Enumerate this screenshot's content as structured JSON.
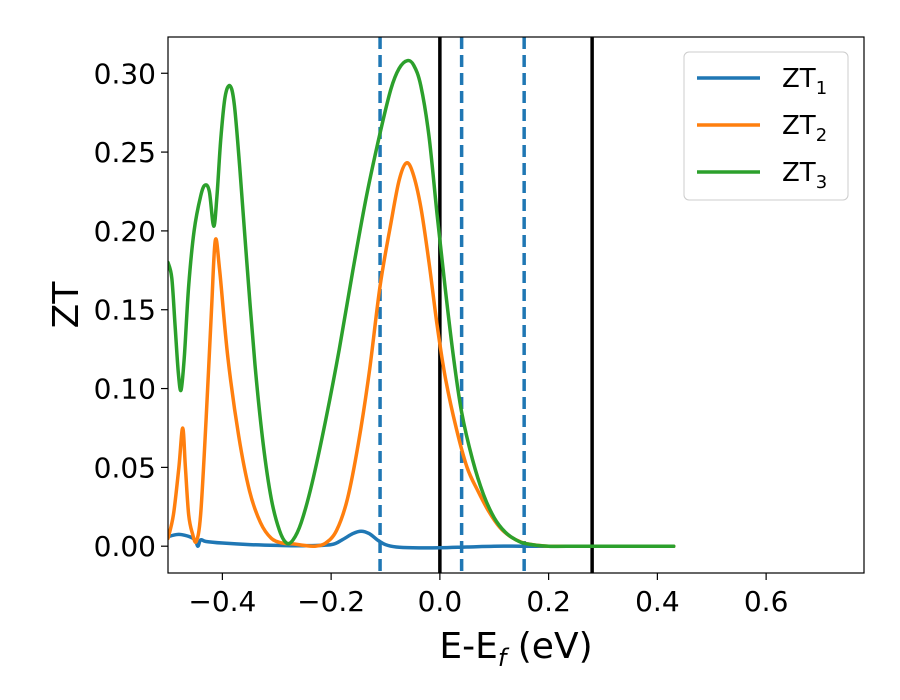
{
  "chart_data": {
    "type": "line",
    "title": "",
    "xlabel_main": "E-E",
    "xlabel_sub": "f",
    "xlabel_unit": " (eV)",
    "ylabel": "ZT",
    "xlim": [
      -0.5,
      0.78
    ],
    "ylim": [
      -0.017,
      0.323
    ],
    "xticks": [
      -0.4,
      -0.2,
      0.0,
      0.2,
      0.4,
      0.6
    ],
    "xtick_labels": [
      "−0.4",
      "−0.2",
      "0.0",
      "0.2",
      "0.4",
      "0.6"
    ],
    "yticks": [
      0.0,
      0.05,
      0.1,
      0.15,
      0.2,
      0.25,
      0.3
    ],
    "ytick_labels": [
      "0.00",
      "0.05",
      "0.10",
      "0.15",
      "0.20",
      "0.25",
      "0.30"
    ],
    "grid": false,
    "legend_position": "top-right",
    "vlines_dashed": {
      "x": [
        -0.11,
        0.04,
        0.155
      ],
      "color": "#1f77b4"
    },
    "vlines_solid": {
      "x": [
        0.0,
        0.28
      ],
      "color": "#000000"
    },
    "series": [
      {
        "name_main": "ZT",
        "name_sub": "1",
        "color": "#1f77b4",
        "points": [
          [
            -0.5,
            0.006
          ],
          [
            -0.49,
            0.007
          ],
          [
            -0.48,
            0.0075
          ],
          [
            -0.47,
            0.007
          ],
          [
            -0.46,
            0.006
          ],
          [
            -0.45,
            0.004
          ],
          [
            -0.445,
            0.0
          ],
          [
            -0.44,
            0.004
          ],
          [
            -0.43,
            0.003
          ],
          [
            -0.4,
            0.002
          ],
          [
            -0.35,
            0.001
          ],
          [
            -0.3,
            0.0005
          ],
          [
            -0.25,
            0.0003
          ],
          [
            -0.2,
            0.001
          ],
          [
            -0.18,
            0.004
          ],
          [
            -0.16,
            0.008
          ],
          [
            -0.145,
            0.0095
          ],
          [
            -0.13,
            0.008
          ],
          [
            -0.115,
            0.004
          ],
          [
            -0.1,
            0.001
          ],
          [
            -0.08,
            -0.0005
          ],
          [
            -0.05,
            -0.001
          ],
          [
            0.0,
            -0.001
          ],
          [
            0.05,
            -0.0005
          ],
          [
            0.1,
            0.0
          ],
          [
            0.15,
            0.0
          ],
          [
            0.2,
            0.0
          ],
          [
            0.25,
            0.0
          ],
          [
            0.3,
            0.0
          ],
          [
            0.35,
            0.0
          ],
          [
            0.4,
            0.0
          ],
          [
            0.43,
            0.0
          ]
        ]
      },
      {
        "name_main": "ZT",
        "name_sub": "2",
        "color": "#ff7f0e",
        "points": [
          [
            -0.5,
            0.005
          ],
          [
            -0.49,
            0.02
          ],
          [
            -0.48,
            0.05
          ],
          [
            -0.473,
            0.075
          ],
          [
            -0.468,
            0.05
          ],
          [
            -0.462,
            0.02
          ],
          [
            -0.455,
            0.008
          ],
          [
            -0.448,
            0.003
          ],
          [
            -0.44,
            0.02
          ],
          [
            -0.43,
            0.08
          ],
          [
            -0.42,
            0.15
          ],
          [
            -0.413,
            0.194
          ],
          [
            -0.405,
            0.175
          ],
          [
            -0.39,
            0.12
          ],
          [
            -0.37,
            0.07
          ],
          [
            -0.35,
            0.035
          ],
          [
            -0.33,
            0.015
          ],
          [
            -0.31,
            0.005
          ],
          [
            -0.29,
            0.002
          ],
          [
            -0.27,
            0.0015
          ],
          [
            -0.25,
            0.0005
          ],
          [
            -0.23,
            0.0
          ],
          [
            -0.21,
            0.002
          ],
          [
            -0.19,
            0.01
          ],
          [
            -0.17,
            0.03
          ],
          [
            -0.15,
            0.065
          ],
          [
            -0.13,
            0.11
          ],
          [
            -0.11,
            0.165
          ],
          [
            -0.09,
            0.205
          ],
          [
            -0.075,
            0.232
          ],
          [
            -0.062,
            0.243
          ],
          [
            -0.05,
            0.237
          ],
          [
            -0.035,
            0.215
          ],
          [
            -0.02,
            0.18
          ],
          [
            -0.005,
            0.14
          ],
          [
            0.01,
            0.107
          ],
          [
            0.03,
            0.075
          ],
          [
            0.05,
            0.05
          ],
          [
            0.07,
            0.035
          ],
          [
            0.09,
            0.022
          ],
          [
            0.11,
            0.012
          ],
          [
            0.13,
            0.006
          ],
          [
            0.15,
            0.0025
          ],
          [
            0.17,
            0.001
          ],
          [
            0.2,
            0.0
          ],
          [
            0.25,
            0.0
          ],
          [
            0.3,
            0.0
          ],
          [
            0.35,
            0.0
          ],
          [
            0.4,
            0.0
          ],
          [
            0.43,
            0.0
          ]
        ]
      },
      {
        "name_main": "ZT",
        "name_sub": "3",
        "color": "#2ca02c",
        "points": [
          [
            -0.5,
            0.18
          ],
          [
            -0.493,
            0.17
          ],
          [
            -0.487,
            0.14
          ],
          [
            -0.481,
            0.11
          ],
          [
            -0.476,
            0.099
          ],
          [
            -0.47,
            0.12
          ],
          [
            -0.462,
            0.165
          ],
          [
            -0.452,
            0.2
          ],
          [
            -0.44,
            0.222
          ],
          [
            -0.432,
            0.229
          ],
          [
            -0.424,
            0.225
          ],
          [
            -0.416,
            0.203
          ],
          [
            -0.41,
            0.222
          ],
          [
            -0.403,
            0.258
          ],
          [
            -0.395,
            0.285
          ],
          [
            -0.386,
            0.292
          ],
          [
            -0.378,
            0.28
          ],
          [
            -0.368,
            0.24
          ],
          [
            -0.355,
            0.18
          ],
          [
            -0.34,
            0.115
          ],
          [
            -0.325,
            0.065
          ],
          [
            -0.31,
            0.03
          ],
          [
            -0.295,
            0.01
          ],
          [
            -0.282,
            0.002
          ],
          [
            -0.27,
            0.004
          ],
          [
            -0.255,
            0.015
          ],
          [
            -0.235,
            0.04
          ],
          [
            -0.21,
            0.08
          ],
          [
            -0.185,
            0.125
          ],
          [
            -0.16,
            0.175
          ],
          [
            -0.135,
            0.222
          ],
          [
            -0.11,
            0.262
          ],
          [
            -0.09,
            0.29
          ],
          [
            -0.075,
            0.303
          ],
          [
            -0.06,
            0.308
          ],
          [
            -0.048,
            0.305
          ],
          [
            -0.035,
            0.292
          ],
          [
            -0.02,
            0.26
          ],
          [
            -0.005,
            0.21
          ],
          [
            0.01,
            0.163
          ],
          [
            0.025,
            0.12
          ],
          [
            0.04,
            0.085
          ],
          [
            0.06,
            0.055
          ],
          [
            0.08,
            0.033
          ],
          [
            0.1,
            0.018
          ],
          [
            0.12,
            0.009
          ],
          [
            0.14,
            0.004
          ],
          [
            0.16,
            0.0015
          ],
          [
            0.2,
            0.0
          ],
          [
            0.25,
            0.0
          ],
          [
            0.3,
            0.0
          ],
          [
            0.35,
            0.0
          ],
          [
            0.4,
            0.0
          ],
          [
            0.43,
            0.0
          ]
        ]
      }
    ]
  }
}
